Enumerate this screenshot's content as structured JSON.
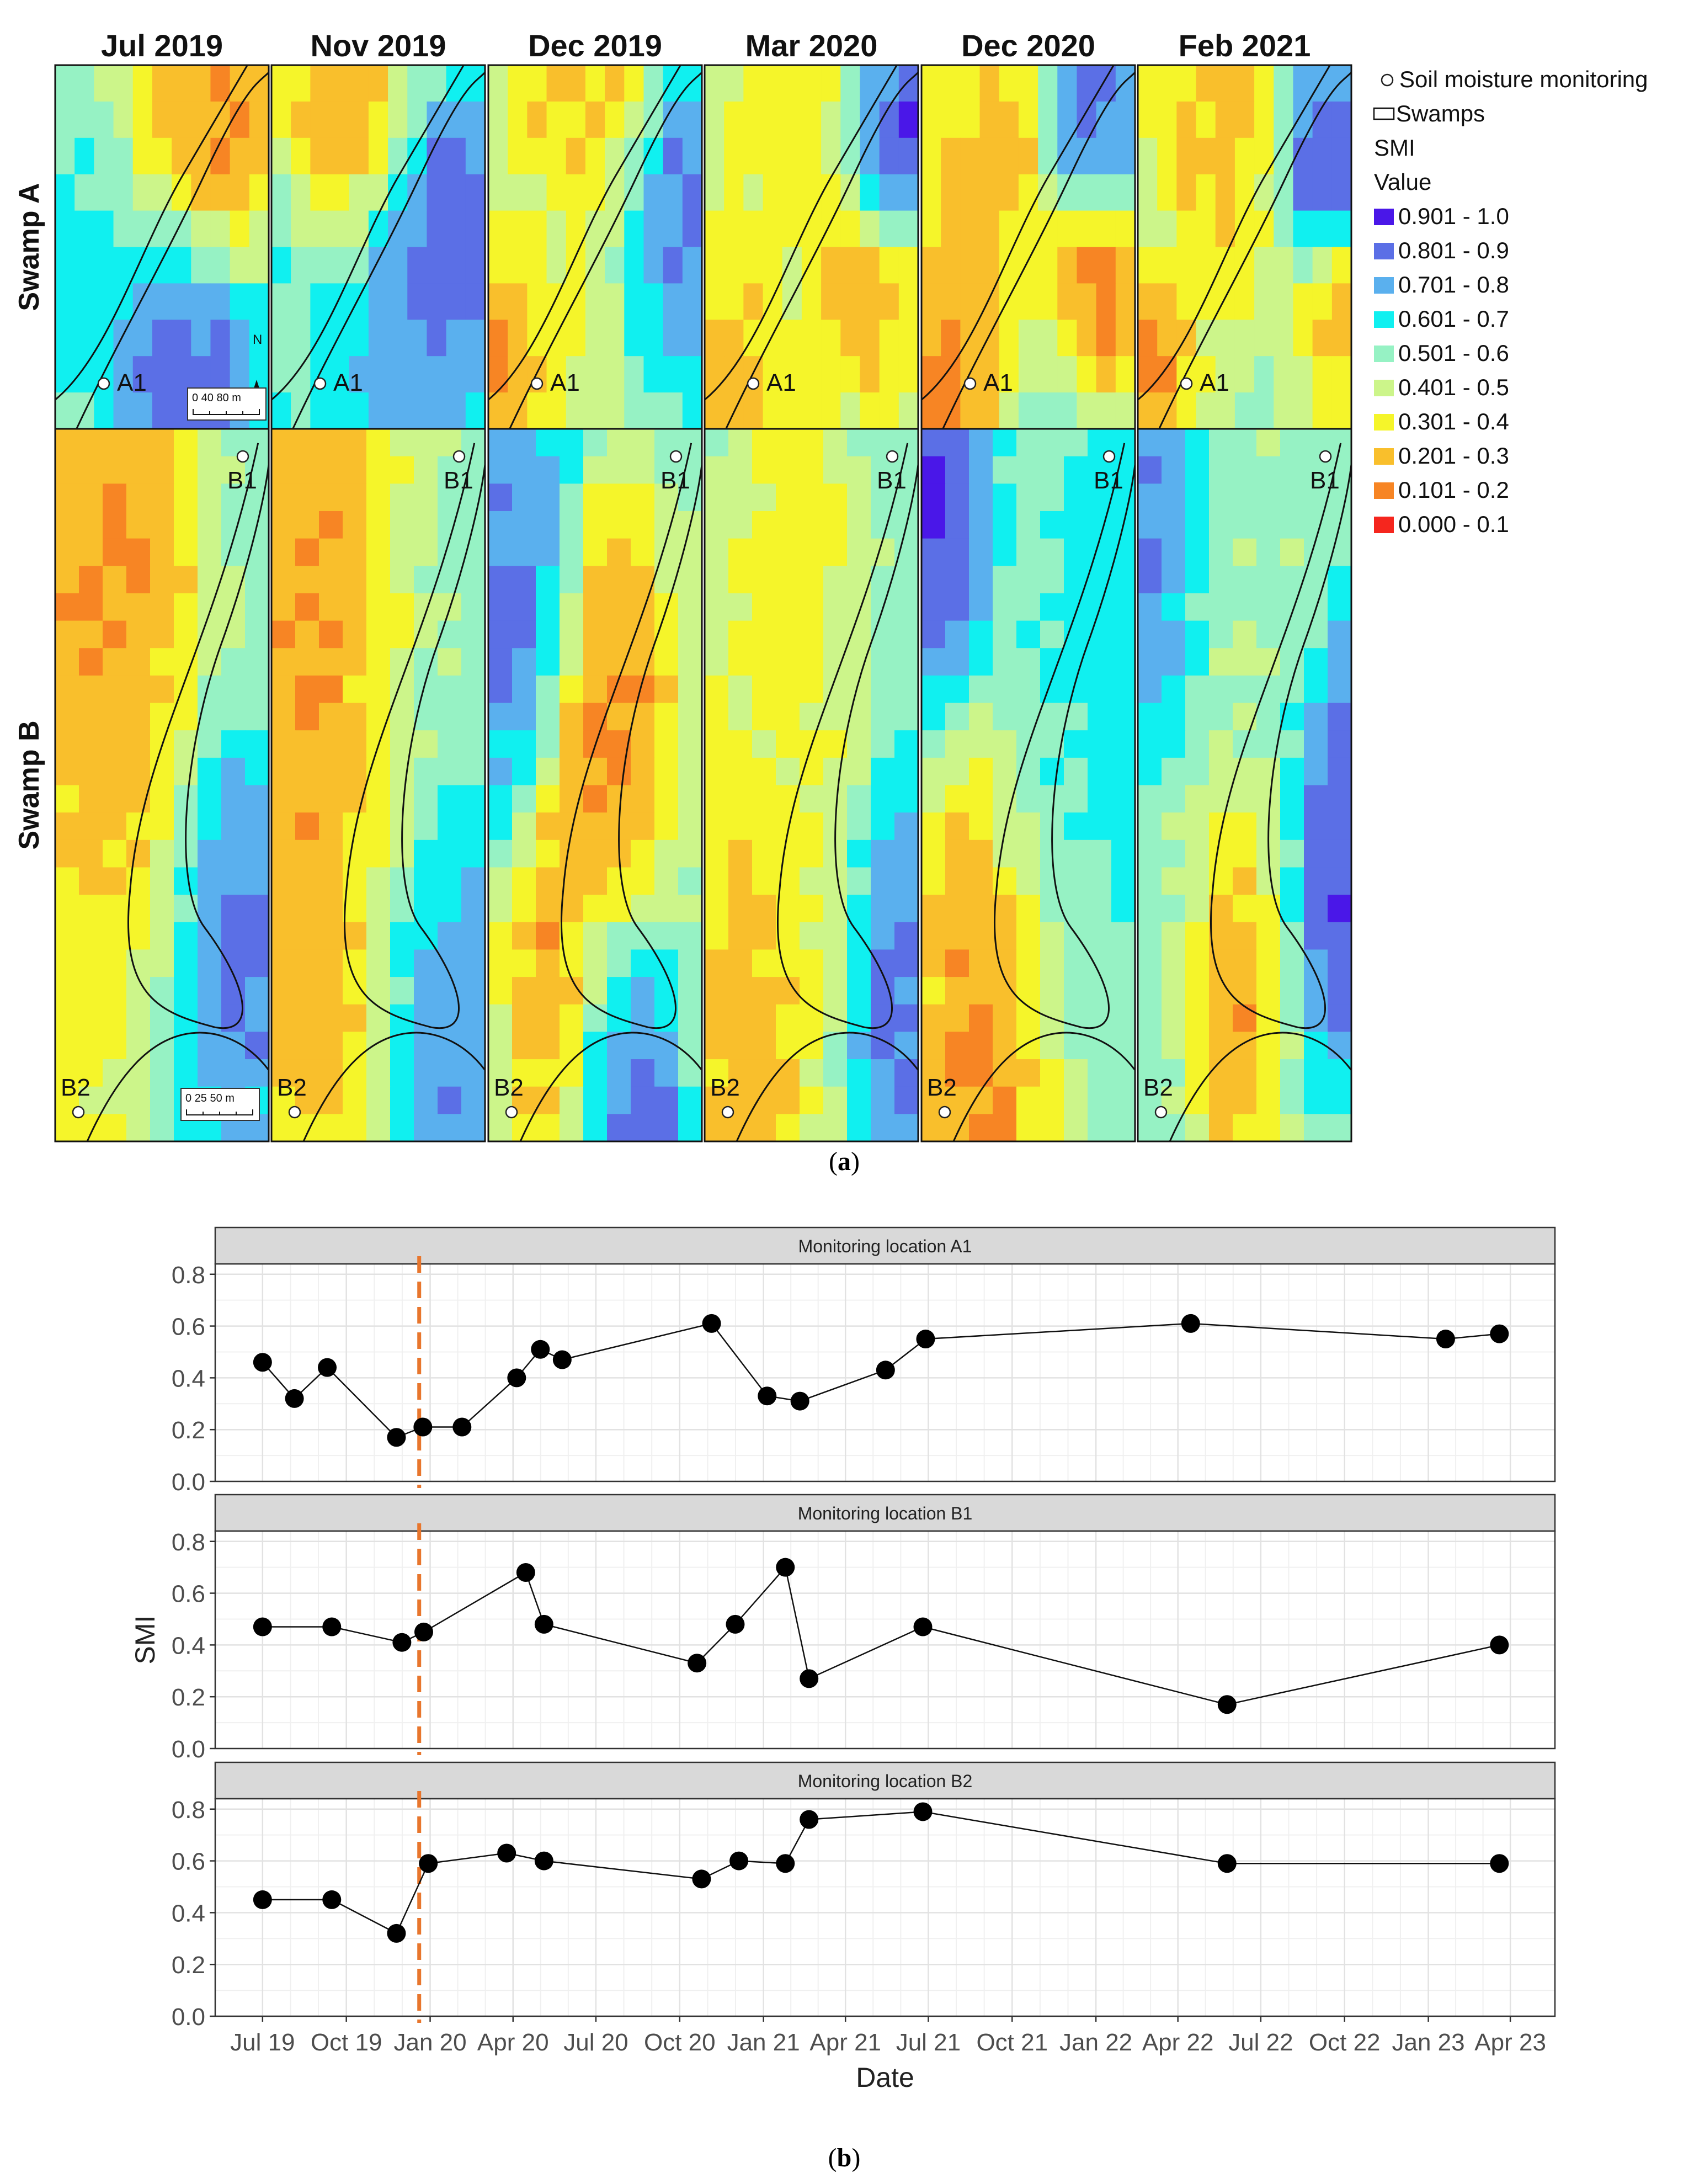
{
  "figure": {
    "panel_a_label": "(a)",
    "panel_a_letter": "a",
    "panel_b_label": "(b)",
    "panel_b_letter": "b"
  },
  "maps": {
    "dates": [
      "Jul 2019",
      "Nov 2019",
      "Dec 2019",
      "Mar 2020",
      "Dec 2020",
      "Feb 2021"
    ],
    "rows": [
      "Swamp A",
      "Swamp B"
    ],
    "point_labels": {
      "a": "A1",
      "b_top": "B1",
      "b_bottom": "B2"
    },
    "north_label": "N",
    "scale_a": "0 40 80 m",
    "scale_b": "0 25 50 m",
    "legend": {
      "monitoring": "Soil moisture monitoring",
      "swamps": "Swamps",
      "title1": "SMI",
      "title2": "Value",
      "classes": [
        {
          "label": "0.901 - 1.0",
          "color": "#4a17e8"
        },
        {
          "label": "0.801 - 0.9",
          "color": "#5b6fe6"
        },
        {
          "label": "0.701 - 0.8",
          "color": "#5ab0ee"
        },
        {
          "label": "0.601 - 0.7",
          "color": "#10f0f0"
        },
        {
          "label": "0.501 - 0.6",
          "color": "#96f2c4"
        },
        {
          "label": "0.401 - 0.5",
          "color": "#ccf58a"
        },
        {
          "label": "0.301 - 0.4",
          "color": "#f5f52a"
        },
        {
          "label": "0.201 - 0.3",
          "color": "#f9bf2c"
        },
        {
          "label": "0.101 - 0.2",
          "color": "#f78524"
        },
        {
          "label": "0.000 - 0.1",
          "color": "#f5261e"
        }
      ]
    }
  },
  "chart_data": {
    "type": "line",
    "xlabel": "Date",
    "ylabel": "SMI",
    "x_ticks": [
      "Jul 19",
      "Oct 19",
      "Jan 20",
      "Apr 20",
      "Jul 20",
      "Oct 20",
      "Jan 21",
      "Apr 21",
      "Jul 21",
      "Oct 21",
      "Jan 22",
      "Apr 22",
      "Jul 22",
      "Oct 22",
      "Jan 23",
      "Apr 23"
    ],
    "x_tick_dates": [
      "2019-07-01",
      "2019-10-01",
      "2020-01-01",
      "2020-04-01",
      "2020-07-01",
      "2020-10-01",
      "2021-01-01",
      "2021-04-01",
      "2021-07-01",
      "2021-10-01",
      "2022-01-01",
      "2022-04-01",
      "2022-07-01",
      "2022-10-01",
      "2023-01-01",
      "2023-04-01"
    ],
    "y_ticks": [
      "0.0",
      "0.2",
      "0.4",
      "0.6",
      "0.8"
    ],
    "ylim": [
      0,
      0.84
    ],
    "xlim": [
      "2019-05-10",
      "2023-05-20"
    ],
    "vline_date": "2019-12-20",
    "vline_color": "#e8762d",
    "grid": true,
    "series": [
      {
        "name": "Monitoring location A1",
        "points": [
          [
            "2019-07-01",
            0.46
          ],
          [
            "2019-08-05",
            0.32
          ],
          [
            "2019-09-10",
            0.44
          ],
          [
            "2019-11-25",
            0.17
          ],
          [
            "2019-12-24",
            0.21
          ],
          [
            "2020-02-05",
            0.21
          ],
          [
            "2020-04-05",
            0.4
          ],
          [
            "2020-05-01",
            0.51
          ],
          [
            "2020-05-25",
            0.47
          ],
          [
            "2020-11-05",
            0.61
          ],
          [
            "2021-01-05",
            0.33
          ],
          [
            "2021-02-10",
            0.31
          ],
          [
            "2021-05-15",
            0.43
          ],
          [
            "2021-06-28",
            0.55
          ],
          [
            "2022-04-15",
            0.61
          ],
          [
            "2023-01-20",
            0.55
          ],
          [
            "2023-03-20",
            0.57
          ]
        ]
      },
      {
        "name": "Monitoring location B1",
        "points": [
          [
            "2019-07-01",
            0.47
          ],
          [
            "2019-09-15",
            0.47
          ],
          [
            "2019-12-01",
            0.41
          ],
          [
            "2019-12-25",
            0.45
          ],
          [
            "2020-04-15",
            0.68
          ],
          [
            "2020-05-05",
            0.48
          ],
          [
            "2020-10-20",
            0.33
          ],
          [
            "2020-12-01",
            0.48
          ],
          [
            "2021-01-25",
            0.7
          ],
          [
            "2021-02-20",
            0.27
          ],
          [
            "2021-06-25",
            0.47
          ],
          [
            "2022-05-25",
            0.17
          ],
          [
            "2023-03-20",
            0.4
          ]
        ]
      },
      {
        "name": "Monitoring location B2",
        "points": [
          [
            "2019-07-01",
            0.45
          ],
          [
            "2019-09-15",
            0.45
          ],
          [
            "2019-11-25",
            0.32
          ],
          [
            "2019-12-30",
            0.59
          ],
          [
            "2020-03-25",
            0.63
          ],
          [
            "2020-05-05",
            0.6
          ],
          [
            "2020-10-25",
            0.53
          ],
          [
            "2020-12-05",
            0.6
          ],
          [
            "2021-01-25",
            0.59
          ],
          [
            "2021-02-20",
            0.76
          ],
          [
            "2021-06-25",
            0.79
          ],
          [
            "2022-05-25",
            0.59
          ],
          [
            "2023-03-20",
            0.59
          ]
        ]
      }
    ]
  }
}
